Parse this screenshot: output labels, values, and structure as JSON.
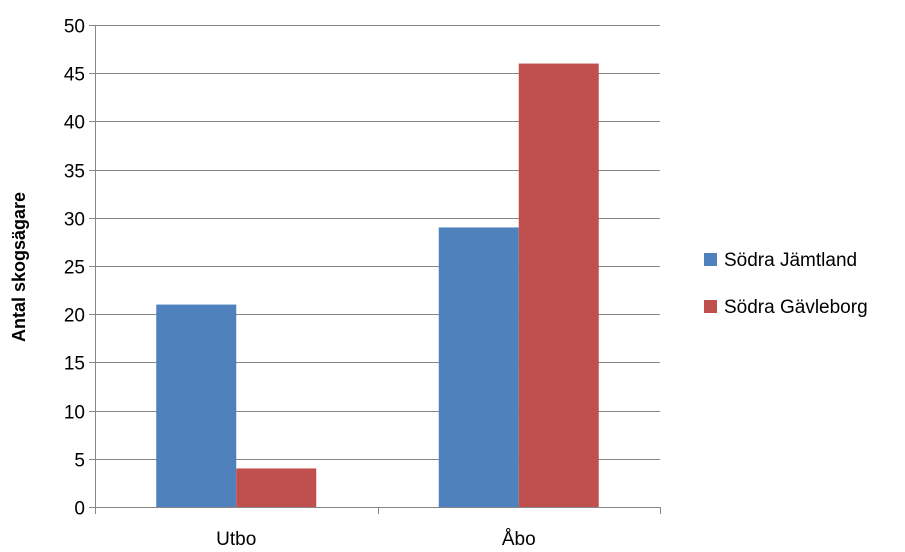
{
  "chart_data": {
    "type": "bar",
    "categories": [
      "Utbo",
      "Åbo"
    ],
    "series": [
      {
        "name": "Södra Jämtland",
        "values": [
          21,
          29
        ],
        "color": "#4F81BD"
      },
      {
        "name": "Södra Gävleborg",
        "values": [
          4,
          46
        ],
        "color": "#C0504D"
      }
    ],
    "ylabel": "Antal skogsägare",
    "xlabel": "",
    "ylim": [
      0,
      50
    ],
    "yticks": [
      0,
      5,
      10,
      15,
      20,
      25,
      30,
      35,
      40,
      45,
      50
    ],
    "grid": true,
    "legend_position": "right",
    "gridline_color": "#868686"
  }
}
